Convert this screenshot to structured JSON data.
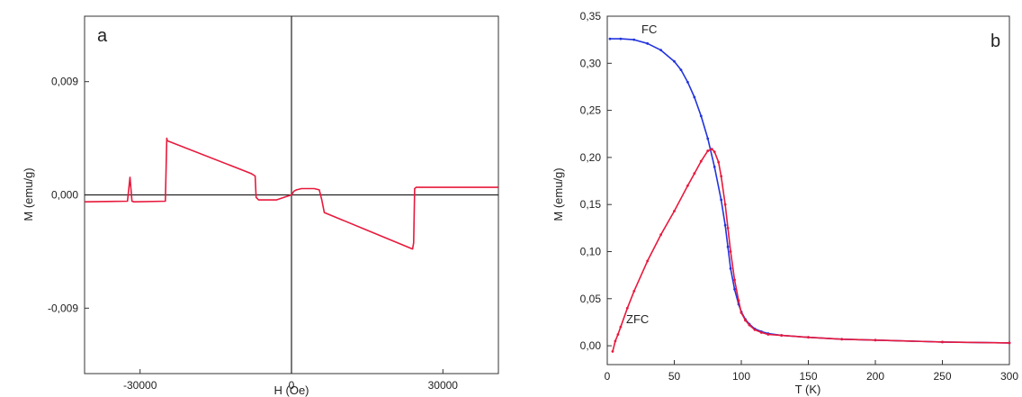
{
  "chart_data": [
    {
      "type": "line",
      "panel_label": "a",
      "xlabel": "H (Oe)",
      "ylabel": "M (emu/g)",
      "xlim": [
        -41000,
        41000
      ],
      "ylim": [
        -0.0142,
        0.0142
      ],
      "xticks": [
        -30000,
        0,
        30000
      ],
      "xtick_labels": [
        "-30000",
        "0",
        "30000"
      ],
      "yticks": [
        -0.009,
        0.0,
        0.009
      ],
      "ytick_labels": [
        "-0,009",
        "0,000",
        "0,009"
      ],
      "grid": false,
      "zero_lines": true,
      "series": [
        {
          "color": "#e8193c",
          "x": [
            -41000,
            -32500,
            -32000,
            -31600,
            -31200,
            -25000,
            -24700,
            -24600,
            -8000,
            -7200,
            -7000,
            -6500,
            -5500,
            -3000,
            -1500,
            0,
            500,
            1000,
            2000,
            3000,
            4500,
            5500,
            6000,
            6200,
            6500,
            24000,
            24200,
            24400,
            24700,
            25500,
            41000
          ],
          "y": [
            -0.00055,
            -0.0005,
            0.0014,
            -0.0005,
            -0.00055,
            -0.0005,
            0.0045,
            0.0043,
            0.0017,
            0.0015,
            -0.0002,
            -0.0004,
            -0.0004,
            -0.0004,
            -0.0002,
            0.0,
            0.0003,
            0.0004,
            0.0005,
            0.0005,
            0.0005,
            0.0004,
            -0.0004,
            -0.0008,
            -0.0014,
            -0.0043,
            -0.0038,
            0.0005,
            0.0006,
            0.0006,
            0.0006
          ]
        }
      ]
    },
    {
      "type": "line",
      "panel_label": "b",
      "xlabel": "T (K)",
      "ylabel": "M (emu/g)",
      "xlim": [
        0,
        300
      ],
      "ylim": [
        -0.02,
        0.35
      ],
      "xticks": [
        0,
        50,
        100,
        150,
        200,
        250,
        300
      ],
      "xtick_labels": [
        "0",
        "50",
        "100",
        "150",
        "200",
        "250",
        "300"
      ],
      "yticks": [
        0.0,
        0.05,
        0.1,
        0.15,
        0.2,
        0.25,
        0.3,
        0.35
      ],
      "ytick_labels": [
        "0,00",
        "0,05",
        "0,10",
        "0,15",
        "0,20",
        "0,25",
        "0,30",
        "0,35"
      ],
      "grid": false,
      "series": [
        {
          "name": "FC",
          "color": "#2233dd",
          "x": [
            2,
            10,
            20,
            30,
            40,
            50,
            55,
            60,
            65,
            70,
            75,
            80,
            85,
            88,
            90,
            92,
            95,
            98,
            100,
            103,
            106,
            110,
            115,
            120,
            130,
            150,
            175,
            200,
            250,
            300
          ],
          "y": [
            0.326,
            0.326,
            0.325,
            0.321,
            0.314,
            0.302,
            0.293,
            0.28,
            0.264,
            0.244,
            0.22,
            0.19,
            0.155,
            0.128,
            0.105,
            0.082,
            0.06,
            0.044,
            0.036,
            0.028,
            0.023,
            0.018,
            0.015,
            0.013,
            0.011,
            0.009,
            0.007,
            0.006,
            0.004,
            0.003
          ]
        },
        {
          "name": "ZFC",
          "color": "#e8193c",
          "x": [
            4,
            6,
            8,
            10,
            15,
            20,
            30,
            40,
            50,
            60,
            65,
            70,
            75,
            78,
            80,
            83,
            85,
            88,
            90,
            92,
            95,
            98,
            100,
            103,
            106,
            110,
            115,
            120,
            130,
            150,
            175,
            200,
            250,
            300
          ],
          "y": [
            -0.006,
            0.005,
            0.012,
            0.02,
            0.04,
            0.058,
            0.09,
            0.118,
            0.143,
            0.17,
            0.183,
            0.196,
            0.207,
            0.209,
            0.206,
            0.195,
            0.18,
            0.15,
            0.125,
            0.1,
            0.07,
            0.048,
            0.035,
            0.027,
            0.022,
            0.017,
            0.014,
            0.012,
            0.011,
            0.009,
            0.007,
            0.006,
            0.004,
            0.003
          ]
        }
      ]
    }
  ]
}
